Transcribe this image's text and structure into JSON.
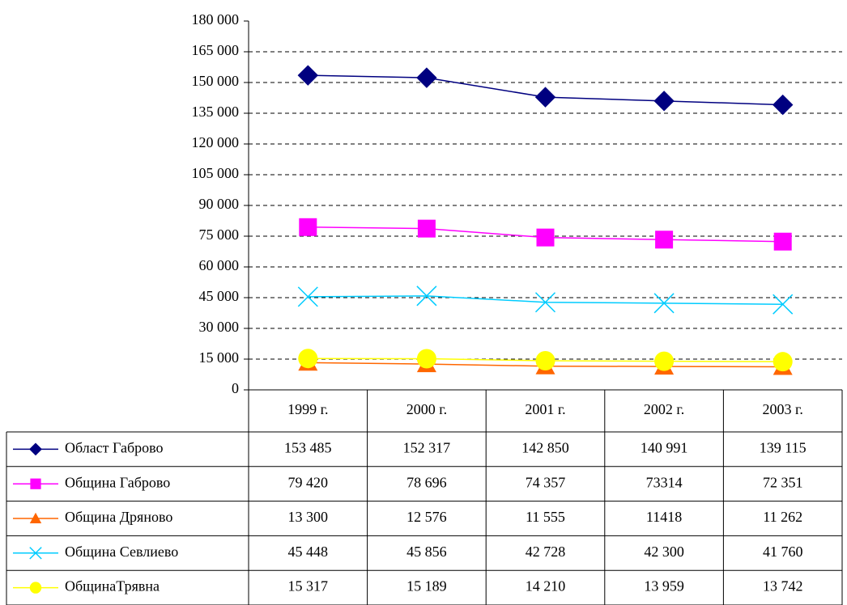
{
  "chart_data": {
    "type": "line",
    "categories": [
      "1999 г.",
      "2000 г.",
      "2001 г.",
      "2002 г.",
      "2003 г."
    ],
    "series": [
      {
        "name": "Област Габрово",
        "color": "#000080",
        "marker": "diamond",
        "values": [
          153485,
          152317,
          142850,
          140991,
          139115
        ],
        "value_labels": [
          "153 485",
          "152 317",
          "142 850",
          "140 991",
          "139 115"
        ]
      },
      {
        "name": "Община Габрово",
        "color": "#ff00ff",
        "marker": "square",
        "values": [
          79420,
          78696,
          74357,
          73314,
          72351
        ],
        "value_labels": [
          "79 420",
          "78 696",
          "74 357",
          "73314",
          "72 351"
        ]
      },
      {
        "name": "Община Дряново",
        "color": "#ff6600",
        "marker": "triangle",
        "values": [
          13300,
          12576,
          11555,
          11418,
          11262
        ],
        "value_labels": [
          "13 300",
          "12 576",
          "11 555",
          "11418",
          "11 262"
        ]
      },
      {
        "name": "Община Севлиево",
        "color": "#00ccff",
        "marker": "cross",
        "values": [
          45448,
          45856,
          42728,
          42300,
          41760
        ],
        "value_labels": [
          "45 448",
          "45 856",
          "42 728",
          "42 300",
          "41 760"
        ]
      },
      {
        "name": "ОбщинаТрявна",
        "color": "#ffff00",
        "marker": "circle",
        "values": [
          15317,
          15189,
          14210,
          13959,
          13742
        ],
        "value_labels": [
          "15 317",
          "15 189",
          "14 210",
          "13 959",
          "13 742"
        ]
      }
    ],
    "ylim": [
      0,
      180000
    ],
    "yticks": [
      0,
      {
        "value": 15000,
        "label": "15 000"
      },
      {
        "value": 30000,
        "label": "30 000"
      },
      {
        "value": 45000,
        "label": "45 000"
      },
      {
        "value": 60000,
        "label": "60 000"
      },
      {
        "value": 75000,
        "label": "75 000"
      },
      {
        "value": 90000,
        "label": "90 000"
      },
      {
        "value": 105000,
        "label": "105 000"
      },
      {
        "value": 120000,
        "label": "120 000"
      },
      {
        "value": 135000,
        "label": "135 000"
      },
      {
        "value": 150000,
        "label": "150 000"
      },
      {
        "value": 165000,
        "label": "165 000"
      },
      {
        "value": 180000,
        "label": "180 000"
      }
    ],
    "grid": true
  }
}
